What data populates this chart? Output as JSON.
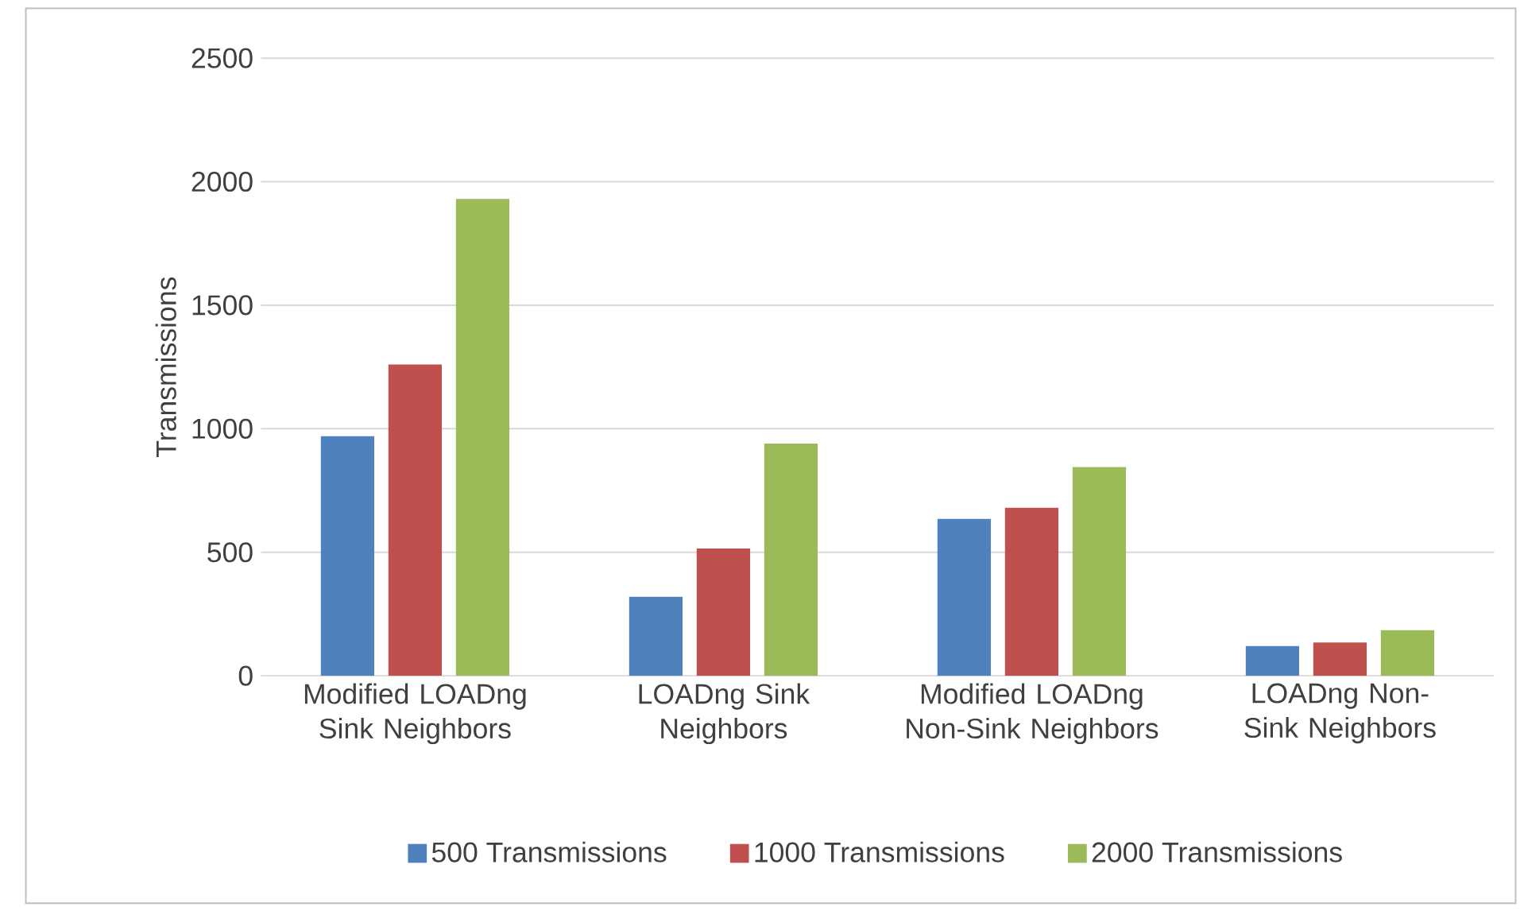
{
  "chart_data": {
    "type": "bar",
    "ylabel": "Transmissions",
    "categories": [
      "Modified LOADng Sink Neighbors",
      "LOADng Sink Neighbors",
      "Modified LOADng Non-Sink Neighbors",
      "LOADng Non-Sink Neighbors"
    ],
    "series": [
      {
        "name": "500 Transmissions",
        "color": "#4f81bd",
        "values": [
          970,
          320,
          635,
          120
        ]
      },
      {
        "name": "1000 Transmissions",
        "color": "#c0504d",
        "values": [
          1260,
          515,
          680,
          135
        ]
      },
      {
        "name": "2000 Transmissions",
        "color": "#9bbb59",
        "values": [
          1930,
          940,
          845,
          185
        ]
      }
    ],
    "ylim": [
      0,
      2500
    ],
    "yticks": [
      0,
      500,
      1000,
      1500,
      2000,
      2500
    ],
    "grid": "y",
    "legend": "bottom"
  }
}
